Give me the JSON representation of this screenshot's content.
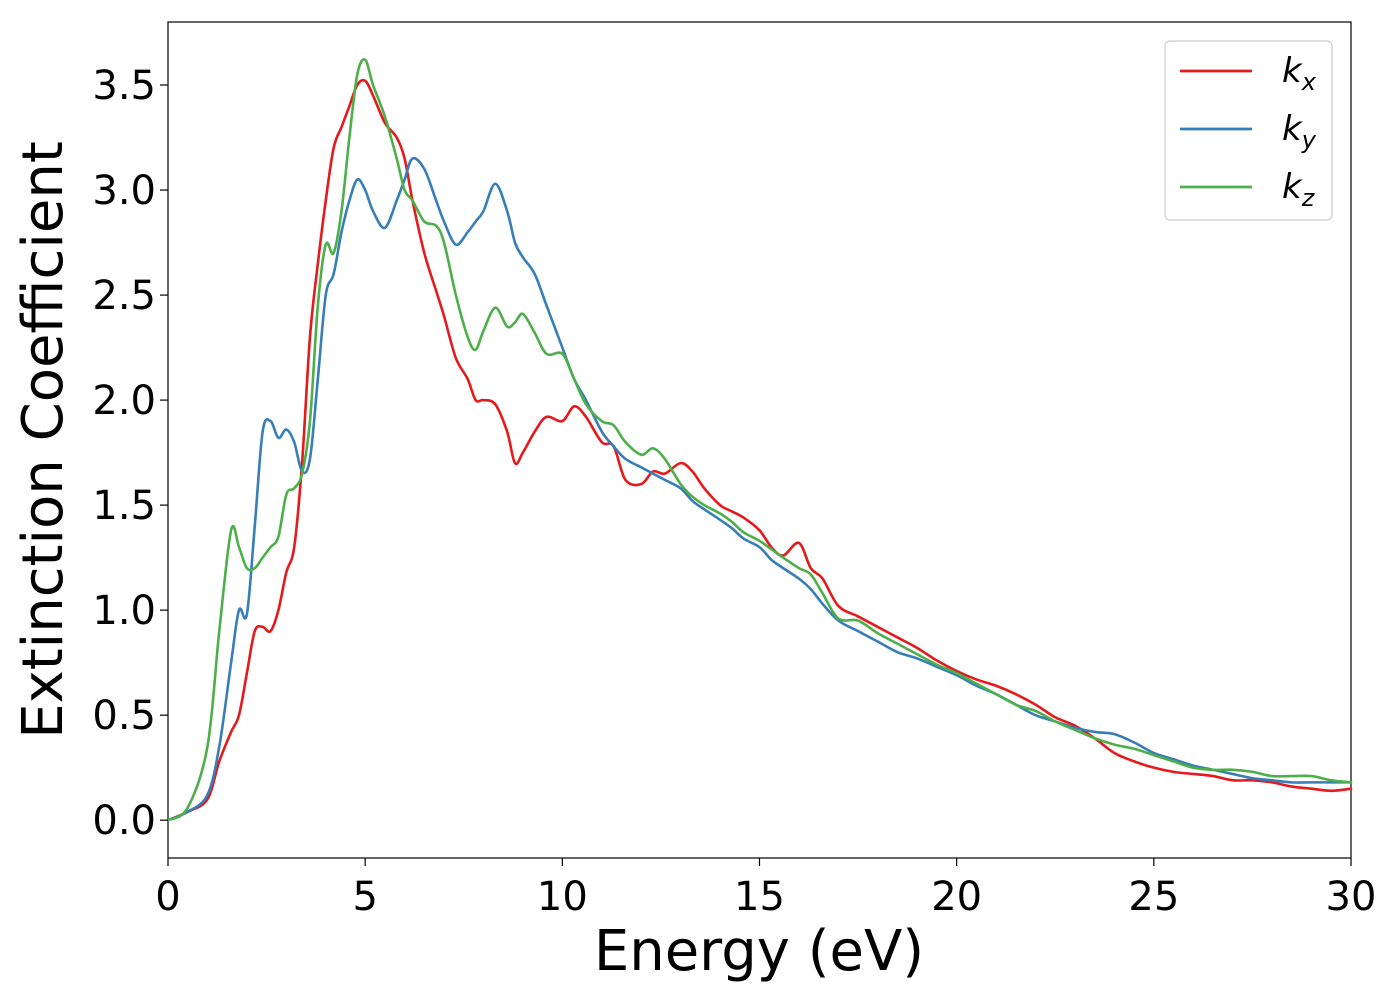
{
  "chart_data": {
    "type": "line",
    "xlabel": "Energy (eV)",
    "ylabel": "Extinction Coefficient",
    "xlim": [
      0,
      30
    ],
    "ylim": [
      -0.18,
      3.8
    ],
    "xticks": [
      0,
      5,
      10,
      15,
      20,
      25,
      30
    ],
    "xtick_labels": [
      "0",
      "5",
      "10",
      "15",
      "20",
      "25",
      "30"
    ],
    "yticks": [
      0.0,
      0.5,
      1.0,
      1.5,
      2.0,
      2.5,
      3.0,
      3.5
    ],
    "ytick_labels": [
      "0.0",
      "0.5",
      "1.0",
      "1.5",
      "2.0",
      "2.5",
      "3.0",
      "3.5"
    ],
    "grid": false,
    "legend_position": "top-right",
    "series": [
      {
        "name": "k_x",
        "label_main": "k",
        "label_sub": "x",
        "color": "#e41a1c",
        "x": [
          0,
          0.5,
          1.0,
          1.3,
          1.6,
          1.8,
          2.0,
          2.2,
          2.4,
          2.6,
          2.8,
          3.0,
          3.2,
          3.4,
          3.6,
          3.8,
          4.0,
          4.2,
          4.4,
          4.6,
          4.8,
          5.0,
          5.2,
          5.5,
          5.8,
          6.0,
          6.2,
          6.5,
          6.8,
          7.0,
          7.3,
          7.6,
          7.8,
          8.0,
          8.3,
          8.6,
          8.8,
          9.0,
          9.3,
          9.6,
          10.0,
          10.3,
          10.6,
          11.0,
          11.3,
          11.6,
          12.0,
          12.3,
          12.6,
          13.0,
          13.3,
          13.6,
          14.0,
          14.3,
          14.6,
          15.0,
          15.3,
          15.6,
          16.0,
          16.3,
          16.6,
          17.0,
          17.5,
          18.0,
          18.5,
          19.0,
          19.5,
          20.0,
          20.5,
          21.0,
          21.5,
          22.0,
          22.5,
          23.0,
          23.5,
          24.0,
          24.5,
          25.0,
          25.5,
          26.0,
          26.5,
          27.0,
          27.5,
          28.0,
          28.5,
          29.0,
          29.5,
          30.0
        ],
        "values": [
          0,
          0.04,
          0.1,
          0.28,
          0.42,
          0.5,
          0.7,
          0.9,
          0.92,
          0.9,
          1.0,
          1.18,
          1.3,
          1.7,
          2.3,
          2.65,
          2.95,
          3.2,
          3.3,
          3.4,
          3.5,
          3.52,
          3.45,
          3.32,
          3.25,
          3.15,
          2.95,
          2.7,
          2.52,
          2.4,
          2.2,
          2.1,
          2.0,
          2.0,
          1.98,
          1.85,
          1.7,
          1.75,
          1.85,
          1.92,
          1.9,
          1.97,
          1.92,
          1.8,
          1.78,
          1.62,
          1.6,
          1.66,
          1.65,
          1.7,
          1.66,
          1.58,
          1.5,
          1.47,
          1.44,
          1.38,
          1.3,
          1.26,
          1.32,
          1.2,
          1.15,
          1.02,
          0.97,
          0.92,
          0.87,
          0.82,
          0.76,
          0.71,
          0.67,
          0.64,
          0.6,
          0.55,
          0.49,
          0.45,
          0.39,
          0.32,
          0.28,
          0.25,
          0.23,
          0.22,
          0.21,
          0.19,
          0.19,
          0.18,
          0.16,
          0.15,
          0.14,
          0.15
        ]
      },
      {
        "name": "k_y",
        "label_main": "k",
        "label_sub": "y",
        "color": "#377eb8",
        "x": [
          0,
          0.5,
          1.0,
          1.3,
          1.6,
          1.8,
          2.0,
          2.2,
          2.4,
          2.6,
          2.8,
          3.0,
          3.2,
          3.4,
          3.6,
          3.8,
          4.0,
          4.2,
          4.4,
          4.6,
          4.8,
          5.0,
          5.2,
          5.5,
          5.8,
          6.0,
          6.2,
          6.5,
          6.8,
          7.0,
          7.3,
          7.6,
          7.8,
          8.0,
          8.3,
          8.6,
          8.8,
          9.0,
          9.3,
          9.6,
          10.0,
          10.3,
          10.6,
          11.0,
          11.3,
          11.6,
          12.0,
          12.3,
          12.6,
          13.0,
          13.3,
          13.6,
          14.0,
          14.3,
          14.6,
          15.0,
          15.3,
          15.6,
          16.0,
          16.3,
          16.6,
          17.0,
          17.5,
          18.0,
          18.5,
          19.0,
          19.5,
          20.0,
          20.5,
          21.0,
          21.5,
          22.0,
          22.5,
          23.0,
          23.5,
          24.0,
          24.5,
          25.0,
          25.5,
          26.0,
          26.5,
          27.0,
          27.5,
          28.0,
          28.5,
          29.0,
          29.5,
          30.0
        ],
        "values": [
          0,
          0.04,
          0.12,
          0.35,
          0.75,
          1.0,
          0.98,
          1.4,
          1.85,
          1.9,
          1.82,
          1.86,
          1.8,
          1.66,
          1.72,
          2.1,
          2.5,
          2.6,
          2.8,
          2.95,
          3.05,
          3.0,
          2.9,
          2.82,
          2.95,
          3.05,
          3.15,
          3.1,
          2.95,
          2.85,
          2.74,
          2.8,
          2.85,
          2.9,
          3.03,
          2.9,
          2.75,
          2.68,
          2.6,
          2.45,
          2.25,
          2.1,
          2.0,
          1.85,
          1.78,
          1.72,
          1.68,
          1.65,
          1.62,
          1.58,
          1.52,
          1.48,
          1.43,
          1.39,
          1.34,
          1.3,
          1.24,
          1.2,
          1.15,
          1.1,
          1.03,
          0.95,
          0.9,
          0.85,
          0.8,
          0.77,
          0.73,
          0.69,
          0.64,
          0.6,
          0.55,
          0.5,
          0.47,
          0.44,
          0.42,
          0.41,
          0.37,
          0.32,
          0.29,
          0.26,
          0.24,
          0.22,
          0.2,
          0.19,
          0.18,
          0.18,
          0.18,
          0.18
        ]
      },
      {
        "name": "k_z",
        "label_main": "k",
        "label_sub": "z",
        "color": "#4daf4a",
        "x": [
          0,
          0.5,
          1.0,
          1.3,
          1.6,
          1.8,
          2.0,
          2.2,
          2.4,
          2.6,
          2.8,
          3.0,
          3.2,
          3.4,
          3.6,
          3.8,
          4.0,
          4.2,
          4.4,
          4.6,
          4.8,
          5.0,
          5.2,
          5.5,
          5.8,
          6.0,
          6.2,
          6.5,
          6.8,
          7.0,
          7.3,
          7.6,
          7.8,
          8.0,
          8.3,
          8.6,
          8.8,
          9.0,
          9.3,
          9.6,
          10.0,
          10.3,
          10.6,
          11.0,
          11.3,
          11.6,
          12.0,
          12.3,
          12.6,
          13.0,
          13.3,
          13.6,
          14.0,
          14.3,
          14.6,
          15.0,
          15.3,
          15.6,
          16.0,
          16.3,
          16.6,
          17.0,
          17.5,
          18.0,
          18.5,
          19.0,
          19.5,
          20.0,
          20.5,
          21.0,
          21.5,
          22.0,
          22.5,
          23.0,
          23.5,
          24.0,
          24.5,
          25.0,
          25.5,
          26.0,
          26.5,
          27.0,
          27.5,
          28.0,
          28.5,
          29.0,
          29.5,
          30.0
        ],
        "values": [
          0,
          0.06,
          0.35,
          0.9,
          1.38,
          1.3,
          1.2,
          1.2,
          1.25,
          1.3,
          1.35,
          1.55,
          1.58,
          1.65,
          1.9,
          2.45,
          2.74,
          2.7,
          2.9,
          3.25,
          3.55,
          3.62,
          3.5,
          3.35,
          3.15,
          3.0,
          2.95,
          2.85,
          2.83,
          2.75,
          2.5,
          2.3,
          2.24,
          2.33,
          2.44,
          2.35,
          2.37,
          2.41,
          2.32,
          2.22,
          2.22,
          2.1,
          1.98,
          1.9,
          1.88,
          1.8,
          1.74,
          1.77,
          1.72,
          1.6,
          1.54,
          1.5,
          1.46,
          1.42,
          1.37,
          1.33,
          1.29,
          1.25,
          1.2,
          1.17,
          1.08,
          0.96,
          0.95,
          0.89,
          0.84,
          0.79,
          0.74,
          0.7,
          0.65,
          0.6,
          0.55,
          0.52,
          0.47,
          0.43,
          0.39,
          0.36,
          0.34,
          0.31,
          0.28,
          0.25,
          0.24,
          0.24,
          0.23,
          0.21,
          0.21,
          0.21,
          0.19,
          0.18
        ]
      }
    ]
  }
}
